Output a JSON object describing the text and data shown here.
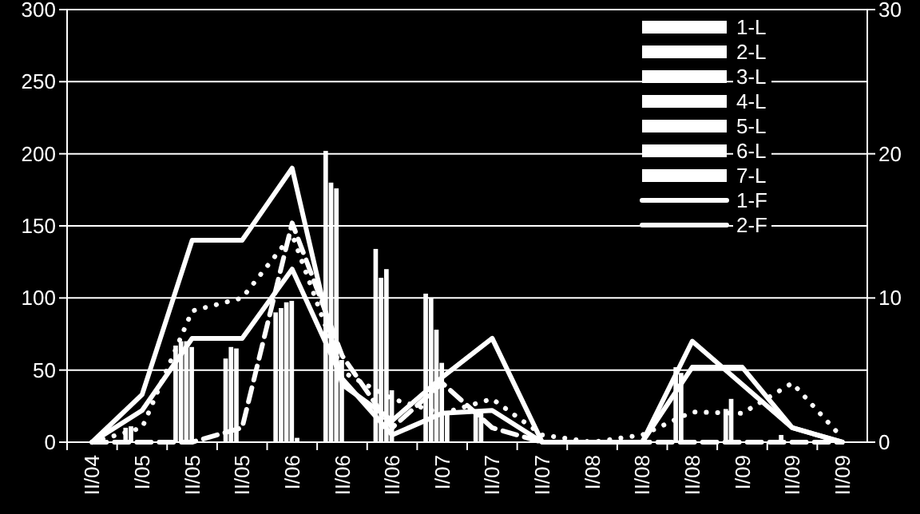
{
  "chart_data": {
    "type": "bar",
    "categories": [
      "II/04",
      "I/05",
      "II/05",
      "II/05",
      "I/06",
      "II/06",
      "II/06",
      "I/07",
      "II/07",
      "II/07",
      "I/08",
      "II/08",
      "II/08",
      "I/09",
      "II/09",
      "II/09"
    ],
    "series": [
      {
        "name": "1-L",
        "color": "#ffffff",
        "values": [
          0,
          10,
          67,
          58,
          90,
          202,
          134,
          103,
          20,
          0,
          0,
          0,
          52,
          23,
          0,
          0
        ]
      },
      {
        "name": "2-L",
        "color": "#ffffff",
        "values": [
          0,
          11,
          70,
          66,
          93,
          180,
          114,
          100,
          20,
          0,
          0,
          0,
          48,
          30,
          5,
          0
        ]
      },
      {
        "name": "3-L",
        "color": "#ffffff",
        "values": [
          0,
          0,
          70,
          65,
          97,
          176,
          120,
          78,
          0,
          0,
          0,
          0,
          0,
          0,
          0,
          0
        ]
      },
      {
        "name": "4-L",
        "color": "#ffffff",
        "values": [
          0,
          0,
          66,
          0,
          98,
          57,
          36,
          55,
          0,
          0,
          0,
          0,
          0,
          0,
          0,
          0
        ]
      },
      {
        "name": "5-L",
        "color": "#ffffff",
        "values": [
          0,
          0,
          0,
          0,
          3,
          0,
          0,
          20,
          0,
          0,
          0,
          0,
          0,
          0,
          0,
          0
        ]
      },
      {
        "name": "6-L",
        "color": "#ffffff",
        "values": [
          0,
          0,
          0,
          0,
          0,
          0,
          0,
          0,
          0,
          0,
          0,
          0,
          0,
          0,
          0,
          0
        ]
      },
      {
        "name": "7-L",
        "color": "#ffffff",
        "values": [
          0,
          0,
          0,
          0,
          0,
          0,
          0,
          0,
          0,
          0,
          0,
          0,
          0,
          0,
          0,
          0
        ]
      },
      {
        "name": "1-F",
        "type": "line",
        "axis": "y2",
        "line_style": "solid",
        "color": "#ffffff",
        "values": [
          0,
          3.3,
          14,
          14,
          19,
          4,
          1.5,
          4.5,
          7.2,
          0,
          0,
          0,
          7,
          4,
          1,
          0
        ]
      },
      {
        "name": "2-F",
        "type": "line",
        "axis": "y2",
        "line_style": "solid",
        "color": "#ffffff",
        "values": [
          0,
          2.2,
          7.2,
          7.2,
          12,
          4.4,
          0.5,
          2,
          2.2,
          0,
          0,
          0,
          5.2,
          5.2,
          1,
          0
        ]
      },
      {
        "type": "line",
        "axis": "y2",
        "line_style": "dotted",
        "color": "#ffffff",
        "values": [
          0,
          1,
          9.1,
          10,
          14.4,
          4.9,
          3,
          2,
          3,
          0.5,
          0,
          0.5,
          2.1,
          2,
          4.1,
          0.3
        ]
      },
      {
        "type": "line",
        "axis": "y2",
        "line_style": "dashed",
        "color": "#ffffff",
        "values": [
          0,
          0,
          0,
          1,
          15.2,
          6,
          1,
          4.1,
          1,
          0,
          0,
          0,
          0,
          0,
          0,
          0
        ]
      }
    ],
    "ylim": [
      0,
      300
    ],
    "yticks": [
      0,
      50,
      100,
      150,
      200,
      250,
      300
    ],
    "y2lim": [
      0,
      30
    ],
    "y2ticks": [
      0,
      10,
      20,
      30
    ],
    "grid": "y",
    "legend": "top right"
  }
}
